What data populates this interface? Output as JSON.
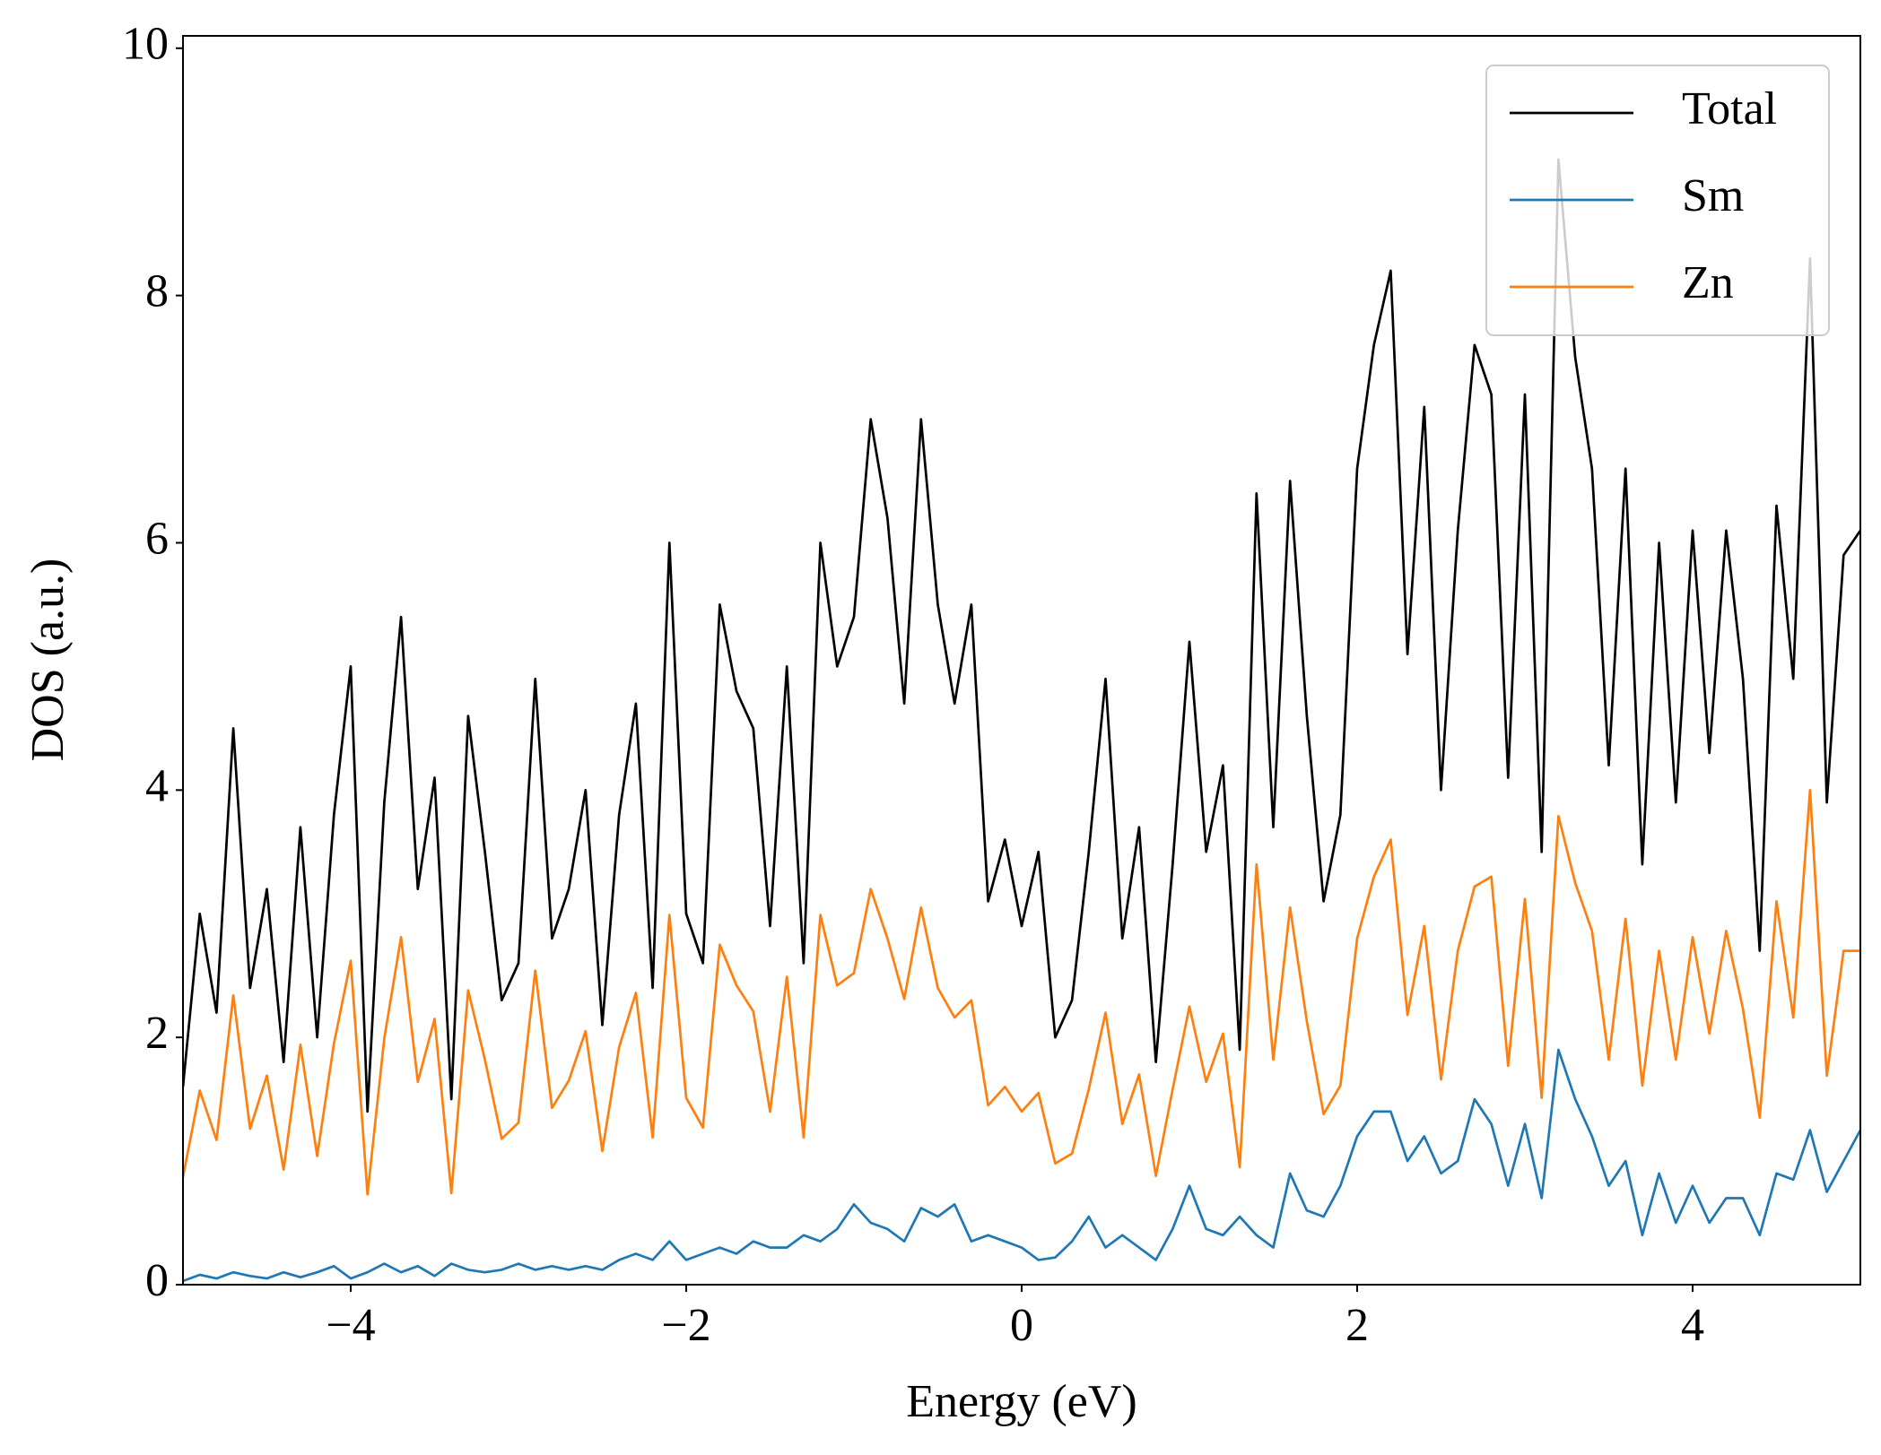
{
  "chart_data": {
    "type": "line",
    "xlabel": "Energy (eV)",
    "ylabel": "DOS (a.u.)",
    "x": [
      -5.0,
      -4.9,
      -4.8,
      -4.7,
      -4.6,
      -4.5,
      -4.4,
      -4.3,
      -4.2,
      -4.1,
      -4.0,
      -3.9,
      -3.8,
      -3.7,
      -3.6,
      -3.5,
      -3.4,
      -3.3,
      -3.2,
      -3.1,
      -3.0,
      -2.9,
      -2.8,
      -2.7,
      -2.6,
      -2.5,
      -2.4,
      -2.3,
      -2.2,
      -2.1,
      -2.0,
      -1.9,
      -1.8,
      -1.7,
      -1.6,
      -1.5,
      -1.4,
      -1.3,
      -1.2,
      -1.1,
      -1.0,
      -0.9,
      -0.8,
      -0.7,
      -0.6,
      -0.5,
      -0.4,
      -0.3,
      -0.2,
      -0.1,
      0.0,
      0.1,
      0.2,
      0.3,
      0.4,
      0.5,
      0.6,
      0.7,
      0.8,
      0.9,
      1.0,
      1.1,
      1.2,
      1.3,
      1.4,
      1.5,
      1.6,
      1.7,
      1.8,
      1.9,
      2.0,
      2.1,
      2.2,
      2.3,
      2.4,
      2.5,
      2.6,
      2.7,
      2.8,
      2.9,
      3.0,
      3.1,
      3.2,
      3.3,
      3.4,
      3.5,
      3.6,
      3.7,
      3.8,
      3.9,
      4.0,
      4.1,
      4.2,
      4.3,
      4.4,
      4.5,
      4.6,
      4.7,
      4.8,
      4.9,
      5.0
    ],
    "series": [
      {
        "name": "Total",
        "color": "#000000",
        "values": [
          1.6,
          3.0,
          2.2,
          4.5,
          2.4,
          3.2,
          1.8,
          3.7,
          2.0,
          3.8,
          5.0,
          1.4,
          3.9,
          5.4,
          3.2,
          4.1,
          1.5,
          4.6,
          3.5,
          2.3,
          2.6,
          4.9,
          2.8,
          3.2,
          4.0,
          2.1,
          3.8,
          4.7,
          2.4,
          6.0,
          3.0,
          2.6,
          5.5,
          4.8,
          4.5,
          2.9,
          5.0,
          2.6,
          6.0,
          5.0,
          5.4,
          7.0,
          6.2,
          4.7,
          7.0,
          5.5,
          4.7,
          5.5,
          3.1,
          3.6,
          2.9,
          3.5,
          2.0,
          2.3,
          3.5,
          4.9,
          2.8,
          3.7,
          1.8,
          3.4,
          5.2,
          3.5,
          4.2,
          1.9,
          6.4,
          3.7,
          6.5,
          4.6,
          3.1,
          3.8,
          6.6,
          7.6,
          8.2,
          5.1,
          7.1,
          4.0,
          6.1,
          7.6,
          7.2,
          4.1,
          7.2,
          3.5,
          9.1,
          7.5,
          6.6,
          4.2,
          6.6,
          3.4,
          6.0,
          3.9,
          6.1,
          4.3,
          6.1,
          4.9,
          2.7,
          6.3,
          4.9,
          8.3,
          3.9,
          5.9,
          6.1
        ]
      },
      {
        "name": "Sm",
        "color": "#1f77b4",
        "values": [
          0.03,
          0.08,
          0.05,
          0.1,
          0.07,
          0.05,
          0.1,
          0.06,
          0.1,
          0.15,
          0.05,
          0.1,
          0.17,
          0.1,
          0.15,
          0.07,
          0.17,
          0.12,
          0.1,
          0.12,
          0.17,
          0.12,
          0.15,
          0.12,
          0.15,
          0.12,
          0.2,
          0.25,
          0.2,
          0.35,
          0.2,
          0.25,
          0.3,
          0.25,
          0.35,
          0.3,
          0.3,
          0.4,
          0.35,
          0.45,
          0.65,
          0.5,
          0.45,
          0.35,
          0.62,
          0.55,
          0.65,
          0.35,
          0.4,
          0.35,
          0.3,
          0.2,
          0.22,
          0.35,
          0.55,
          0.3,
          0.4,
          0.3,
          0.2,
          0.45,
          0.8,
          0.45,
          0.4,
          0.55,
          0.4,
          0.3,
          0.9,
          0.6,
          0.55,
          0.8,
          1.2,
          1.4,
          1.4,
          1.0,
          1.2,
          0.9,
          1.0,
          1.5,
          1.3,
          0.8,
          1.3,
          0.7,
          1.9,
          1.5,
          1.2,
          0.8,
          1.0,
          0.4,
          0.9,
          0.5,
          0.8,
          0.5,
          0.7,
          0.7,
          0.4,
          0.9,
          0.85,
          1.25,
          0.75,
          1.0,
          1.25
        ]
      },
      {
        "name": "Zn",
        "color": "#ff7f0e",
        "values": [
          0.87,
          1.57,
          1.17,
          2.34,
          1.26,
          1.69,
          0.93,
          1.94,
          1.04,
          1.95,
          2.62,
          0.73,
          1.99,
          2.81,
          1.64,
          2.15,
          0.74,
          2.38,
          1.82,
          1.18,
          1.31,
          2.54,
          1.43,
          1.65,
          2.05,
          1.08,
          1.92,
          2.36,
          1.19,
          2.99,
          1.51,
          1.27,
          2.75,
          2.42,
          2.21,
          1.4,
          2.49,
          1.19,
          2.99,
          2.42,
          2.52,
          3.2,
          2.8,
          2.31,
          3.05,
          2.4,
          2.16,
          2.3,
          1.45,
          1.6,
          1.4,
          1.55,
          0.98,
          1.06,
          1.58,
          2.2,
          1.3,
          1.7,
          0.88,
          1.58,
          2.25,
          1.64,
          2.03,
          0.95,
          3.4,
          1.82,
          3.05,
          2.13,
          1.38,
          1.61,
          2.8,
          3.3,
          3.6,
          2.18,
          2.9,
          1.66,
          2.7,
          3.22,
          3.3,
          1.77,
          3.12,
          1.51,
          3.79,
          3.25,
          2.86,
          1.82,
          2.96,
          1.61,
          2.7,
          1.82,
          2.81,
          2.03,
          2.86,
          2.23,
          1.35,
          3.1,
          2.16,
          4.0,
          1.69,
          2.7,
          2.7
        ]
      }
    ],
    "xlim": [
      -5,
      5
    ],
    "ylim": [
      0,
      10.1
    ],
    "xticks": [
      {
        "value": -4,
        "label": "−4"
      },
      {
        "value": -2,
        "label": "−2"
      },
      0,
      2,
      4
    ],
    "yticks": [
      0,
      2,
      4,
      6,
      8,
      10
    ],
    "legend": "upper right"
  }
}
